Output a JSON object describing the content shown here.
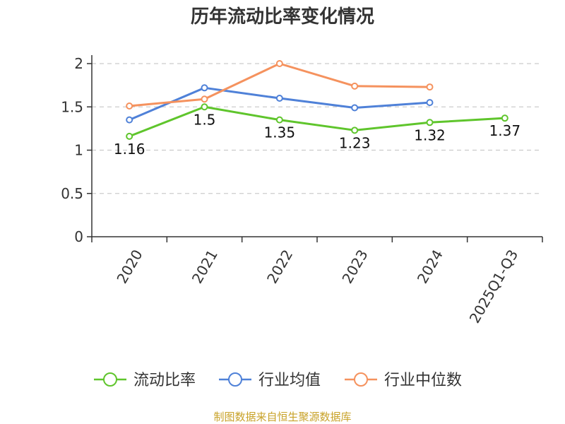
{
  "chart_data": {
    "type": "line",
    "title": "历年流动比率变化情况",
    "categories": [
      "2020",
      "2021",
      "2022",
      "2023",
      "2024",
      "2025Q1-Q3"
    ],
    "ylim": [
      0,
      2
    ],
    "yticks": [
      "0",
      "0.5",
      "1",
      "1.5",
      "2"
    ],
    "grid": true,
    "legend_position": "bottom",
    "series": [
      {
        "name": "流动比率",
        "color": "#5fc52c",
        "values": [
          1.16,
          1.5,
          1.35,
          1.23,
          1.32,
          1.37
        ],
        "labels": [
          "1.16",
          "1.5",
          "1.35",
          "1.23",
          "1.32",
          "1.37"
        ]
      },
      {
        "name": "行业均值",
        "color": "#4f81d8",
        "values": [
          1.35,
          1.72,
          1.6,
          1.49,
          1.55,
          null
        ]
      },
      {
        "name": "行业中位数",
        "color": "#f5925e",
        "values": [
          1.51,
          1.59,
          2.0,
          1.74,
          1.73,
          null
        ]
      }
    ]
  },
  "source": "制图数据来自恒生聚源数据库"
}
